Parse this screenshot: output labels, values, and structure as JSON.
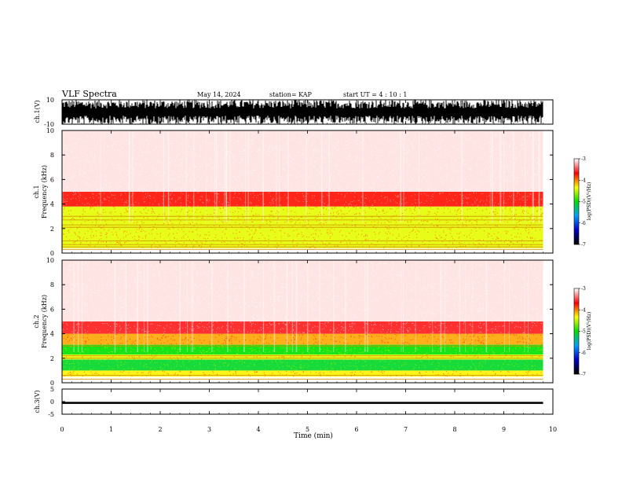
{
  "header": {
    "title": "VLF Spectra",
    "date": "May 14, 2024",
    "station": "station= KAP",
    "start": "start  UT =   4 : 10 : 1"
  },
  "chart_data": [
    {
      "type": "line",
      "name": "ch1-waveform",
      "ylabel": "ch.1(V)",
      "ylim": [
        -10,
        10
      ],
      "yticks": [
        "10",
        "-10"
      ],
      "xlim": [
        0,
        10
      ],
      "data_end_min": 9.8
    },
    {
      "type": "heatmap",
      "name": "ch1-spectrogram",
      "ylabel_top": "ch.1",
      "ylabel": "Frequency  (kHz)",
      "ylim": [
        0,
        10
      ],
      "yticks": [
        "0",
        "2",
        "4",
        "6",
        "8",
        "10"
      ],
      "xlim": [
        0,
        10
      ],
      "data_end_min": 9.8,
      "zlabel": "log(PSD)(V²/Hz)",
      "zlim": [
        -7,
        -3
      ],
      "cbar_ticks": [
        "-3",
        "-4",
        "-5",
        "-6",
        "-7"
      ],
      "bands": [
        {
          "from_khz": 0.4,
          "to_khz": 3.8,
          "level": -4.4
        },
        {
          "from_khz": 3.8,
          "to_khz": 5.0,
          "level": -3.7
        },
        {
          "from_khz": 5.0,
          "to_khz": 10.0,
          "level": -3.2
        }
      ],
      "lines_khz": [
        0.3,
        0.5,
        0.7,
        1.0,
        2.1,
        2.3,
        2.7,
        3.0
      ]
    },
    {
      "type": "heatmap",
      "name": "ch2-spectrogram",
      "ylabel_top": "ch.2",
      "ylabel": "Frequency  (kHz)",
      "ylim": [
        0,
        10
      ],
      "yticks": [
        "0",
        "2",
        "4",
        "6",
        "8",
        "10"
      ],
      "xlim": [
        0,
        10
      ],
      "data_end_min": 9.8,
      "zlabel": "log(PSD)(V²/Hz)",
      "zlim": [
        -7,
        -3
      ],
      "cbar_ticks": [
        "-3",
        "-4",
        "-5",
        "-6",
        "-7"
      ],
      "bands": [
        {
          "from_khz": 0.5,
          "to_khz": 1.0,
          "level": -4.3
        },
        {
          "from_khz": 1.0,
          "to_khz": 1.9,
          "level": -5.1
        },
        {
          "from_khz": 1.9,
          "to_khz": 2.3,
          "level": -4.4
        },
        {
          "from_khz": 2.3,
          "to_khz": 3.1,
          "level": -5.0
        },
        {
          "from_khz": 3.1,
          "to_khz": 4.0,
          "level": -4.1
        },
        {
          "from_khz": 4.0,
          "to_khz": 5.0,
          "level": -3.6
        },
        {
          "from_khz": 5.0,
          "to_khz": 10.0,
          "level": -3.2
        }
      ],
      "lines_khz": [
        0.3,
        0.6,
        2.0,
        2.2,
        3.0
      ]
    },
    {
      "type": "line",
      "name": "ch3-waveform",
      "ylabel": "ch.3(V)",
      "ylim": [
        -5,
        5
      ],
      "yticks": [
        "5",
        "0",
        "-5"
      ],
      "xlim": [
        0,
        10
      ],
      "data_end_min": 9.8,
      "trace_band_v": [
        -0.9,
        -0.1
      ]
    }
  ],
  "x_axis": {
    "label": "Time  (min)",
    "ticks": [
      "0",
      "1",
      "2",
      "3",
      "4",
      "5",
      "6",
      "7",
      "8",
      "9",
      "10"
    ]
  },
  "colors": {
    "colormap": [
      "#000000",
      "#0000c8",
      "#00a0ff",
      "#00e000",
      "#ffff00",
      "#ff0000",
      "#ffffff"
    ]
  }
}
